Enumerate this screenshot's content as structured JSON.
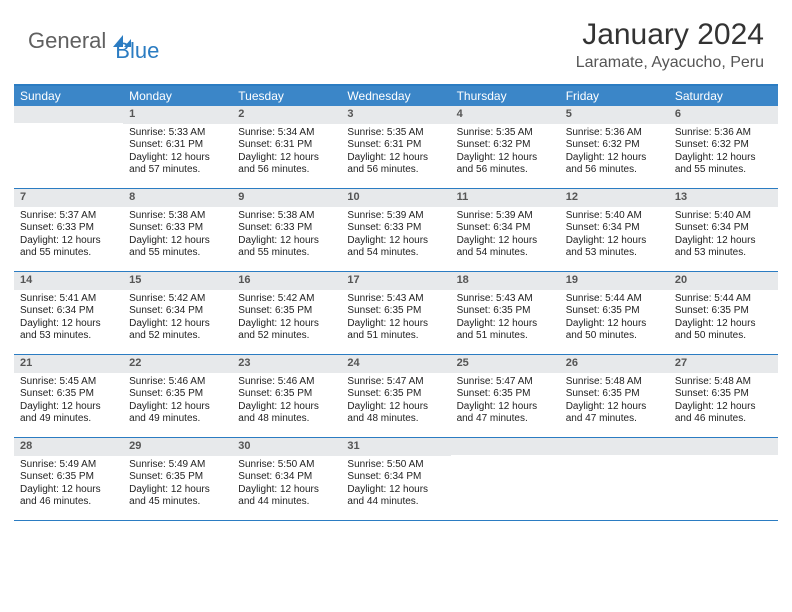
{
  "logo": {
    "part1": "General",
    "part2": "Blue"
  },
  "title": "January 2024",
  "location": "Laramate, Ayacucho, Peru",
  "weekdays": [
    "Sunday",
    "Monday",
    "Tuesday",
    "Wednesday",
    "Thursday",
    "Friday",
    "Saturday"
  ],
  "colors": {
    "header_blue": "#3b86c8",
    "rule_blue": "#2b7cc2",
    "daynum_bg": "#e7e9eb",
    "logo_gray": "#606060",
    "logo_blue": "#2b7cc2"
  },
  "first_weekday_index": 1,
  "days": [
    {
      "n": 1,
      "sunrise": "5:33 AM",
      "sunset": "6:31 PM",
      "daylight": "12 hours and 57 minutes."
    },
    {
      "n": 2,
      "sunrise": "5:34 AM",
      "sunset": "6:31 PM",
      "daylight": "12 hours and 56 minutes."
    },
    {
      "n": 3,
      "sunrise": "5:35 AM",
      "sunset": "6:31 PM",
      "daylight": "12 hours and 56 minutes."
    },
    {
      "n": 4,
      "sunrise": "5:35 AM",
      "sunset": "6:32 PM",
      "daylight": "12 hours and 56 minutes."
    },
    {
      "n": 5,
      "sunrise": "5:36 AM",
      "sunset": "6:32 PM",
      "daylight": "12 hours and 56 minutes."
    },
    {
      "n": 6,
      "sunrise": "5:36 AM",
      "sunset": "6:32 PM",
      "daylight": "12 hours and 55 minutes."
    },
    {
      "n": 7,
      "sunrise": "5:37 AM",
      "sunset": "6:33 PM",
      "daylight": "12 hours and 55 minutes."
    },
    {
      "n": 8,
      "sunrise": "5:38 AM",
      "sunset": "6:33 PM",
      "daylight": "12 hours and 55 minutes."
    },
    {
      "n": 9,
      "sunrise": "5:38 AM",
      "sunset": "6:33 PM",
      "daylight": "12 hours and 55 minutes."
    },
    {
      "n": 10,
      "sunrise": "5:39 AM",
      "sunset": "6:33 PM",
      "daylight": "12 hours and 54 minutes."
    },
    {
      "n": 11,
      "sunrise": "5:39 AM",
      "sunset": "6:34 PM",
      "daylight": "12 hours and 54 minutes."
    },
    {
      "n": 12,
      "sunrise": "5:40 AM",
      "sunset": "6:34 PM",
      "daylight": "12 hours and 53 minutes."
    },
    {
      "n": 13,
      "sunrise": "5:40 AM",
      "sunset": "6:34 PM",
      "daylight": "12 hours and 53 minutes."
    },
    {
      "n": 14,
      "sunrise": "5:41 AM",
      "sunset": "6:34 PM",
      "daylight": "12 hours and 53 minutes."
    },
    {
      "n": 15,
      "sunrise": "5:42 AM",
      "sunset": "6:34 PM",
      "daylight": "12 hours and 52 minutes."
    },
    {
      "n": 16,
      "sunrise": "5:42 AM",
      "sunset": "6:35 PM",
      "daylight": "12 hours and 52 minutes."
    },
    {
      "n": 17,
      "sunrise": "5:43 AM",
      "sunset": "6:35 PM",
      "daylight": "12 hours and 51 minutes."
    },
    {
      "n": 18,
      "sunrise": "5:43 AM",
      "sunset": "6:35 PM",
      "daylight": "12 hours and 51 minutes."
    },
    {
      "n": 19,
      "sunrise": "5:44 AM",
      "sunset": "6:35 PM",
      "daylight": "12 hours and 50 minutes."
    },
    {
      "n": 20,
      "sunrise": "5:44 AM",
      "sunset": "6:35 PM",
      "daylight": "12 hours and 50 minutes."
    },
    {
      "n": 21,
      "sunrise": "5:45 AM",
      "sunset": "6:35 PM",
      "daylight": "12 hours and 49 minutes."
    },
    {
      "n": 22,
      "sunrise": "5:46 AM",
      "sunset": "6:35 PM",
      "daylight": "12 hours and 49 minutes."
    },
    {
      "n": 23,
      "sunrise": "5:46 AM",
      "sunset": "6:35 PM",
      "daylight": "12 hours and 48 minutes."
    },
    {
      "n": 24,
      "sunrise": "5:47 AM",
      "sunset": "6:35 PM",
      "daylight": "12 hours and 48 minutes."
    },
    {
      "n": 25,
      "sunrise": "5:47 AM",
      "sunset": "6:35 PM",
      "daylight": "12 hours and 47 minutes."
    },
    {
      "n": 26,
      "sunrise": "5:48 AM",
      "sunset": "6:35 PM",
      "daylight": "12 hours and 47 minutes."
    },
    {
      "n": 27,
      "sunrise": "5:48 AM",
      "sunset": "6:35 PM",
      "daylight": "12 hours and 46 minutes."
    },
    {
      "n": 28,
      "sunrise": "5:49 AM",
      "sunset": "6:35 PM",
      "daylight": "12 hours and 46 minutes."
    },
    {
      "n": 29,
      "sunrise": "5:49 AM",
      "sunset": "6:35 PM",
      "daylight": "12 hours and 45 minutes."
    },
    {
      "n": 30,
      "sunrise": "5:50 AM",
      "sunset": "6:34 PM",
      "daylight": "12 hours and 44 minutes."
    },
    {
      "n": 31,
      "sunrise": "5:50 AM",
      "sunset": "6:34 PM",
      "daylight": "12 hours and 44 minutes."
    }
  ],
  "labels": {
    "sunrise": "Sunrise:",
    "sunset": "Sunset:",
    "daylight": "Daylight:"
  }
}
